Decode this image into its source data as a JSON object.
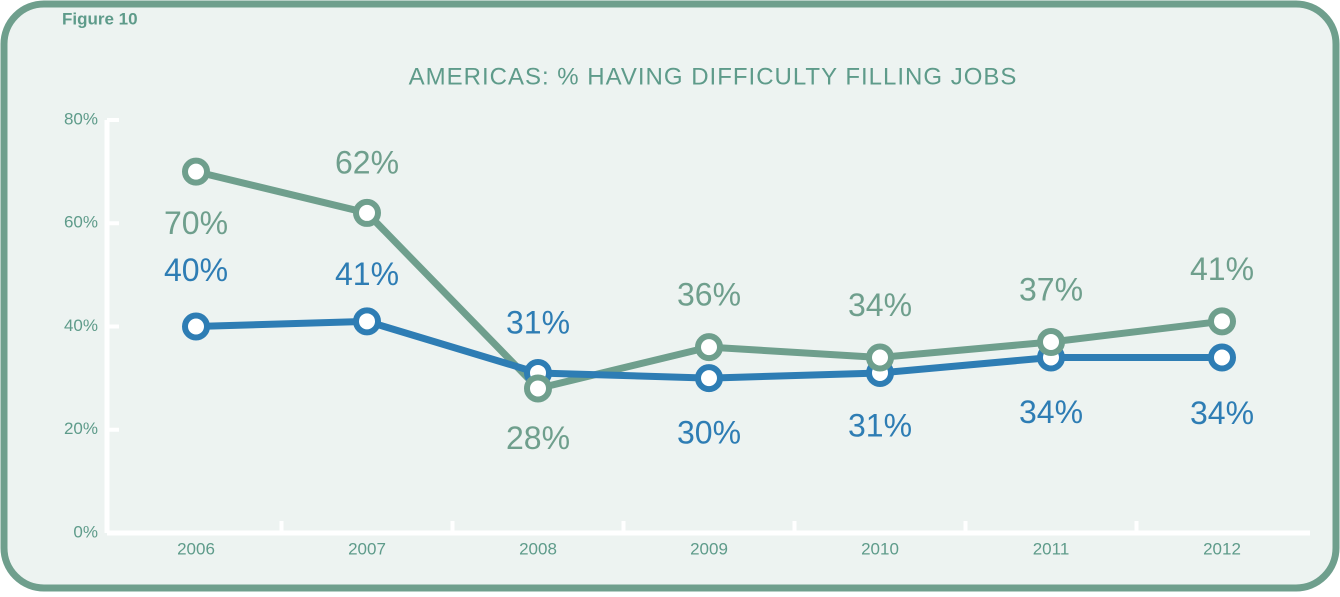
{
  "chart_data": {
    "type": "line",
    "subtitle": "Figure 10",
    "title": "AMERICAS: % HAVING DIFFICULTY FILLING JOBS",
    "categories": [
      "2006",
      "2007",
      "2008",
      "2009",
      "2010",
      "2011",
      "2012"
    ],
    "series": [
      {
        "color": "#6f9f8d",
        "values": [
          70,
          62,
          28,
          36,
          34,
          37,
          41
        ],
        "value_labels": [
          "70%",
          "62%",
          "28%",
          "36%",
          "34%",
          "37%",
          "41%"
        ]
      },
      {
        "color": "#2e7db4",
        "values": [
          40,
          41,
          31,
          30,
          31,
          34,
          34
        ],
        "value_labels": [
          "40%",
          "41%",
          "31%",
          "30%",
          "31%",
          "34%",
          "34%"
        ]
      }
    ],
    "ylim": [
      0,
      80
    ],
    "yticks": [
      {
        "value": 0,
        "label": "0%"
      },
      {
        "value": 20,
        "label": "20%"
      },
      {
        "value": 40,
        "label": "40%"
      },
      {
        "value": 60,
        "label": "60%"
      },
      {
        "value": 80,
        "label": "80%"
      }
    ],
    "grid": false
  }
}
